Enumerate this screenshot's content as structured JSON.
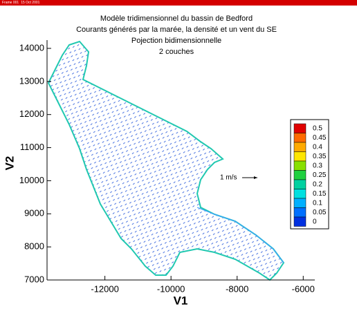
{
  "header": {
    "frame": "Frame 001",
    "date": "15 Oct 2001"
  },
  "chart_data": {
    "type": "vector_field",
    "title": [
      "Modèle tridimensionnel du bassin de Bedford",
      "Courants générés par la marée, la densité et un vent du SE",
      "Pojection bidimensionnelle",
      "2 couches"
    ],
    "x_label": "V1",
    "y_label": "V2",
    "xlim": [
      -13750,
      -5650
    ],
    "ylim": [
      7000,
      14250
    ],
    "xticks": [
      -12000,
      -10000,
      -8000,
      -6000
    ],
    "yticks": [
      7000,
      8000,
      9000,
      10000,
      11000,
      12000,
      13000,
      14000
    ],
    "reference_vector": "1 m/s",
    "legend_levels": [
      0.5,
      0.45,
      0.4,
      0.35,
      0.3,
      0.25,
      0.2,
      0.15,
      0.1,
      0.05,
      0
    ],
    "legend_colors": [
      "#e00000",
      "#ff6a00",
      "#ffaa00",
      "#ffe600",
      "#88e000",
      "#20d040",
      "#00d0a0",
      "#00e0e0",
      "#00b0ff",
      "#0070ff",
      "#0030e0"
    ]
  }
}
